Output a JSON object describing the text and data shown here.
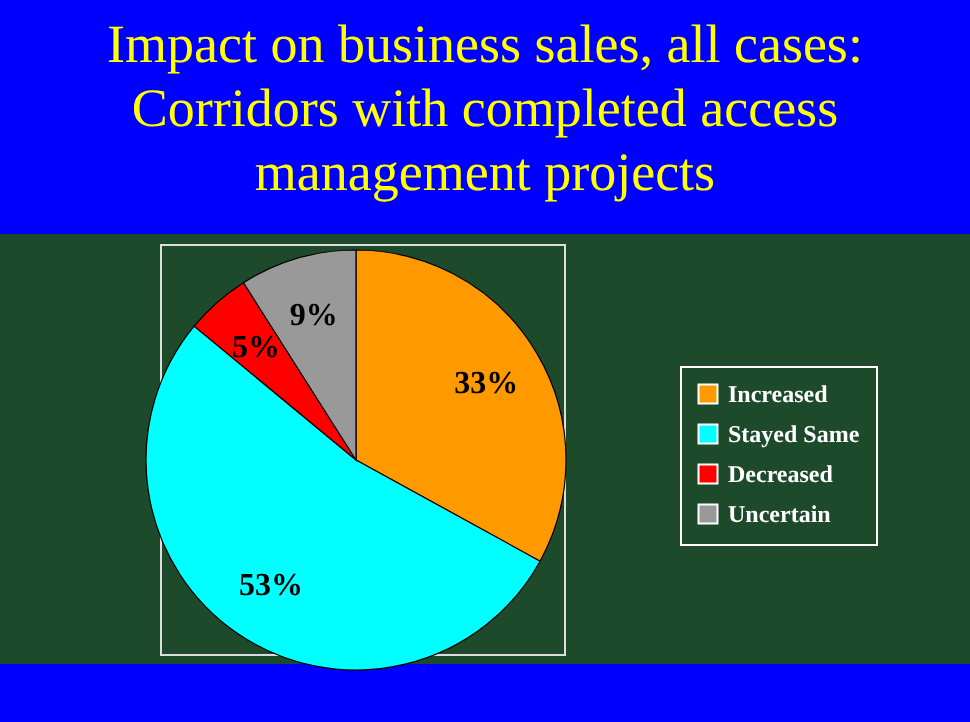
{
  "chart_data": {
    "type": "pie",
    "title": "Impact on business sales, all cases: Corridors with completed access management projects",
    "categories": [
      "Increased",
      "Stayed Same",
      "Decreased",
      "Uncertain"
    ],
    "values": [
      33,
      53,
      5,
      9
    ],
    "colors": [
      "#ff9900",
      "#00ffff",
      "#ff0000",
      "#999999"
    ],
    "value_labels": [
      "33%",
      "53%",
      "5%",
      "9%"
    ],
    "legend": "right"
  }
}
